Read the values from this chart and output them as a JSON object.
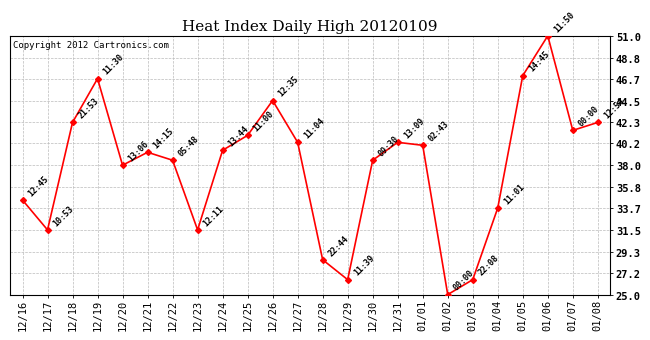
{
  "title": "Heat Index Daily High 20120109",
  "copyright": "Copyright 2012 Cartronics.com",
  "x_labels": [
    "12/16",
    "12/17",
    "12/18",
    "12/19",
    "12/20",
    "12/21",
    "12/22",
    "12/23",
    "12/24",
    "12/25",
    "12/26",
    "12/27",
    "12/28",
    "12/29",
    "12/30",
    "12/31",
    "01/01",
    "01/02",
    "01/03",
    "01/04",
    "01/05",
    "01/06",
    "01/07",
    "01/08"
  ],
  "y_values": [
    34.5,
    31.5,
    42.3,
    46.7,
    38.0,
    39.3,
    38.5,
    31.5,
    39.5,
    41.0,
    44.5,
    40.3,
    28.5,
    26.5,
    38.5,
    40.3,
    40.0,
    25.0,
    26.5,
    33.7,
    47.0,
    51.0,
    41.5,
    42.3
  ],
  "point_labels": [
    "12:45",
    "10:53",
    "21:53",
    "11:30",
    "13:06",
    "14:15",
    "05:48",
    "12:11",
    "13:44",
    "11:00",
    "12:35",
    "11:04",
    "22:44",
    "11:39",
    "09:30",
    "13:09",
    "02:43",
    "00:00",
    "22:08",
    "11:01",
    "14:45",
    "11:50",
    "00:00",
    "12:54"
  ],
  "ylim": [
    25.0,
    51.0
  ],
  "yticks": [
    25.0,
    27.2,
    29.3,
    31.5,
    33.7,
    35.8,
    38.0,
    40.2,
    42.3,
    44.5,
    46.7,
    48.8,
    51.0
  ],
  "line_color": "#ff0000",
  "marker_color": "#ff0000",
  "bg_color": "#ffffff",
  "grid_color": "#bbbbbb",
  "title_fontsize": 11,
  "label_fontsize": 6.0,
  "tick_fontsize": 7.5,
  "copyright_fontsize": 6.5
}
